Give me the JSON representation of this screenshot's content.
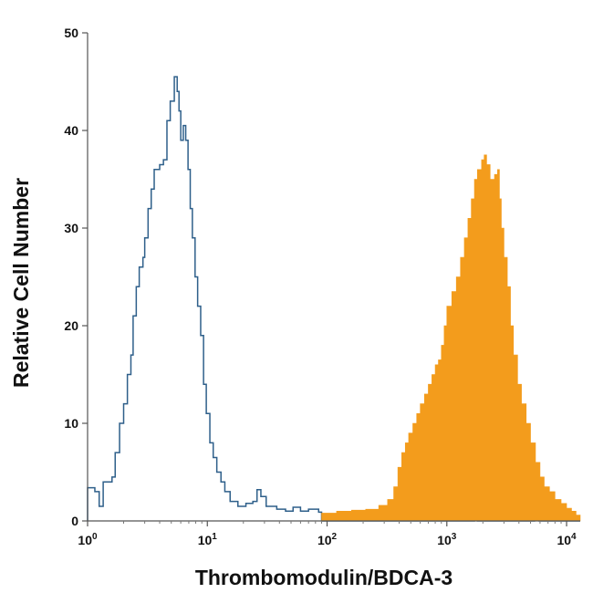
{
  "chart_data": {
    "type": "area",
    "xlabel": "Thrombomodulin/BDCA-3",
    "ylabel": "Relative Cell Number",
    "x_scale": "log",
    "xlim": [
      1,
      13000
    ],
    "ylim": [
      0,
      50
    ],
    "x_ticks": [
      {
        "value": 1,
        "base": "10",
        "exp": "0"
      },
      {
        "value": 10,
        "base": "10",
        "exp": "1"
      },
      {
        "value": 100,
        "base": "10",
        "exp": "2"
      },
      {
        "value": 1000,
        "base": "10",
        "exp": "3"
      },
      {
        "value": 10000,
        "base": "10",
        "exp": "4"
      }
    ],
    "y_ticks": [
      0,
      10,
      20,
      30,
      40,
      50
    ],
    "grid": false,
    "series": [
      {
        "style": "outline",
        "color": "#2e5f8a",
        "points": [
          [
            1.0,
            3.4
          ],
          [
            1.15,
            3.0
          ],
          [
            1.25,
            1.5
          ],
          [
            1.35,
            4.0
          ],
          [
            1.6,
            4.5
          ],
          [
            1.7,
            7.0
          ],
          [
            1.85,
            10.0
          ],
          [
            2.0,
            12.0
          ],
          [
            2.15,
            15.0
          ],
          [
            2.3,
            17.0
          ],
          [
            2.4,
            21.0
          ],
          [
            2.55,
            24.0
          ],
          [
            2.7,
            26.0
          ],
          [
            2.9,
            27.0
          ],
          [
            3.0,
            29.0
          ],
          [
            3.2,
            32.0
          ],
          [
            3.4,
            34.0
          ],
          [
            3.6,
            36.0
          ],
          [
            4.0,
            36.5
          ],
          [
            4.3,
            37.0
          ],
          [
            4.6,
            41.0
          ],
          [
            4.9,
            43.0
          ],
          [
            5.3,
            45.5
          ],
          [
            5.6,
            44.0
          ],
          [
            5.8,
            42.0
          ],
          [
            6.0,
            39.0
          ],
          [
            6.3,
            40.5
          ],
          [
            6.6,
            39.0
          ],
          [
            6.9,
            36.0
          ],
          [
            7.2,
            32.0
          ],
          [
            7.5,
            29.0
          ],
          [
            7.9,
            25.0
          ],
          [
            8.3,
            22.0
          ],
          [
            8.8,
            19.0
          ],
          [
            9.3,
            14.0
          ],
          [
            9.8,
            11.0
          ],
          [
            10.5,
            8.0
          ],
          [
            11.2,
            6.5
          ],
          [
            12.0,
            5.0
          ],
          [
            13.0,
            4.0
          ],
          [
            14.0,
            3.0
          ],
          [
            15.5,
            2.0
          ],
          [
            18.0,
            1.5
          ],
          [
            21.0,
            1.8
          ],
          [
            24.0,
            2.0
          ],
          [
            26.0,
            3.2
          ],
          [
            28.0,
            2.5
          ],
          [
            31.0,
            1.5
          ],
          [
            38.0,
            1.2
          ],
          [
            45.0,
            1.0
          ],
          [
            52.0,
            1.4
          ],
          [
            60.0,
            1.0
          ],
          [
            70.0,
            1.2
          ],
          [
            85.0,
            0.9
          ],
          [
            90.0,
            0.0
          ],
          [
            1600,
            0.0
          ],
          [
            1700,
            1.0
          ],
          [
            1800,
            0.0
          ],
          [
            5000,
            0.0
          ],
          [
            5400,
            1.0
          ],
          [
            5900,
            0.0
          ],
          [
            13000,
            0.0
          ]
        ]
      },
      {
        "style": "filled",
        "color": "#f39c1c",
        "points": [
          [
            85.0,
            0.0
          ],
          [
            90.0,
            0.8
          ],
          [
            120.0,
            1.0
          ],
          [
            160.0,
            1.1
          ],
          [
            210.0,
            1.2
          ],
          [
            270.0,
            1.6
          ],
          [
            320.0,
            2.2
          ],
          [
            360.0,
            3.5
          ],
          [
            390.0,
            5.5
          ],
          [
            420.0,
            7.0
          ],
          [
            450.0,
            8.0
          ],
          [
            480.0,
            9.0
          ],
          [
            520.0,
            10.0
          ],
          [
            560.0,
            11.0
          ],
          [
            600.0,
            12.0
          ],
          [
            650.0,
            13.0
          ],
          [
            700.0,
            14.0
          ],
          [
            750.0,
            15.0
          ],
          [
            800.0,
            16.0
          ],
          [
            850.0,
            16.5
          ],
          [
            900.0,
            18.0
          ],
          [
            950.0,
            20.0
          ],
          [
            1000.0,
            22.0
          ],
          [
            1100.0,
            23.5
          ],
          [
            1200.0,
            25.0
          ],
          [
            1300.0,
            27.0
          ],
          [
            1400.0,
            29.0
          ],
          [
            1500.0,
            31.0
          ],
          [
            1600.0,
            33.0
          ],
          [
            1700.0,
            35.0
          ],
          [
            1800.0,
            36.0
          ],
          [
            1950.0,
            37.0
          ],
          [
            2050.0,
            37.5
          ],
          [
            2150.0,
            36.5
          ],
          [
            2300.0,
            35.0
          ],
          [
            2500.0,
            35.5
          ],
          [
            2650.0,
            36.0
          ],
          [
            2750.0,
            33.0
          ],
          [
            2850.0,
            30.0
          ],
          [
            3000.0,
            27.0
          ],
          [
            3200.0,
            24.0
          ],
          [
            3400.0,
            20.0
          ],
          [
            3600.0,
            17.0
          ],
          [
            3900.0,
            14.0
          ],
          [
            4200.0,
            12.0
          ],
          [
            4600.0,
            10.0
          ],
          [
            5000.0,
            8.0
          ],
          [
            5500.0,
            6.0
          ],
          [
            6000.0,
            4.5
          ],
          [
            6500.0,
            3.5
          ],
          [
            7200.0,
            3.0
          ],
          [
            8000.0,
            2.2
          ],
          [
            9000.0,
            1.8
          ],
          [
            10000.0,
            1.3
          ],
          [
            11000.0,
            1.0
          ],
          [
            12000.0,
            0.6
          ],
          [
            13000.0,
            0.0
          ]
        ]
      }
    ]
  }
}
